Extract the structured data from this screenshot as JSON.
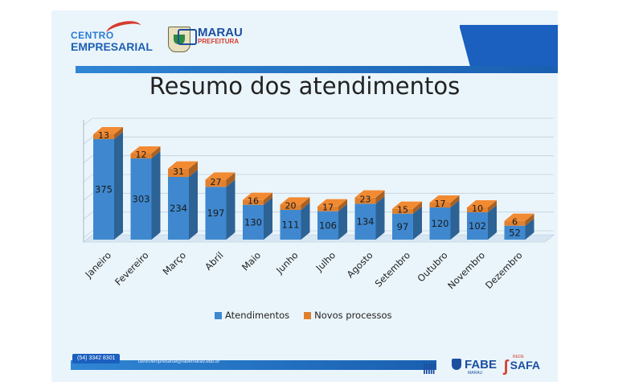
{
  "header": {
    "logo_centro_line1": "CENTRO",
    "logo_centro_line2": "EMPRESARIAL",
    "logo_marau_line1": "MARAU",
    "logo_marau_line2": "PREFEITURA"
  },
  "footer": {
    "phone": "(54) 3342 8301",
    "email": "centroempresarial@fabemarau.edu.br",
    "bars": "|||||",
    "fabe_name": "FABE",
    "fabe_sub": "MARAU",
    "safa_pre": "REDE",
    "safa_name": "SAFA"
  },
  "colors": {
    "atendimentos": "#3f88cf",
    "novos_processos": "#e0802e",
    "slide_bg": "#eaf5fb",
    "brand_blue": "#1b5fbf",
    "brand_red": "#d63b2f"
  },
  "chart_data": {
    "type": "bar",
    "stacked": true,
    "three_d": true,
    "title": "Resumo dos atendimentos",
    "categories": [
      "Janeiro",
      "Fevereiro",
      "Março",
      "Abril",
      "Maio",
      "Junho",
      "Julho",
      "Agosto",
      "Setembro",
      "Outubro",
      "Novembro",
      "Dezembro"
    ],
    "series": [
      {
        "name": "Atendimentos",
        "values": [
          375,
          303,
          234,
          197,
          130,
          111,
          106,
          134,
          97,
          120,
          102,
          52
        ]
      },
      {
        "name": "Novos processos",
        "values": [
          13,
          12,
          31,
          27,
          16,
          20,
          17,
          23,
          15,
          17,
          10,
          6
        ]
      }
    ],
    "ylim": [
      0,
      420
    ],
    "grid": true,
    "legend_position": "bottom"
  }
}
